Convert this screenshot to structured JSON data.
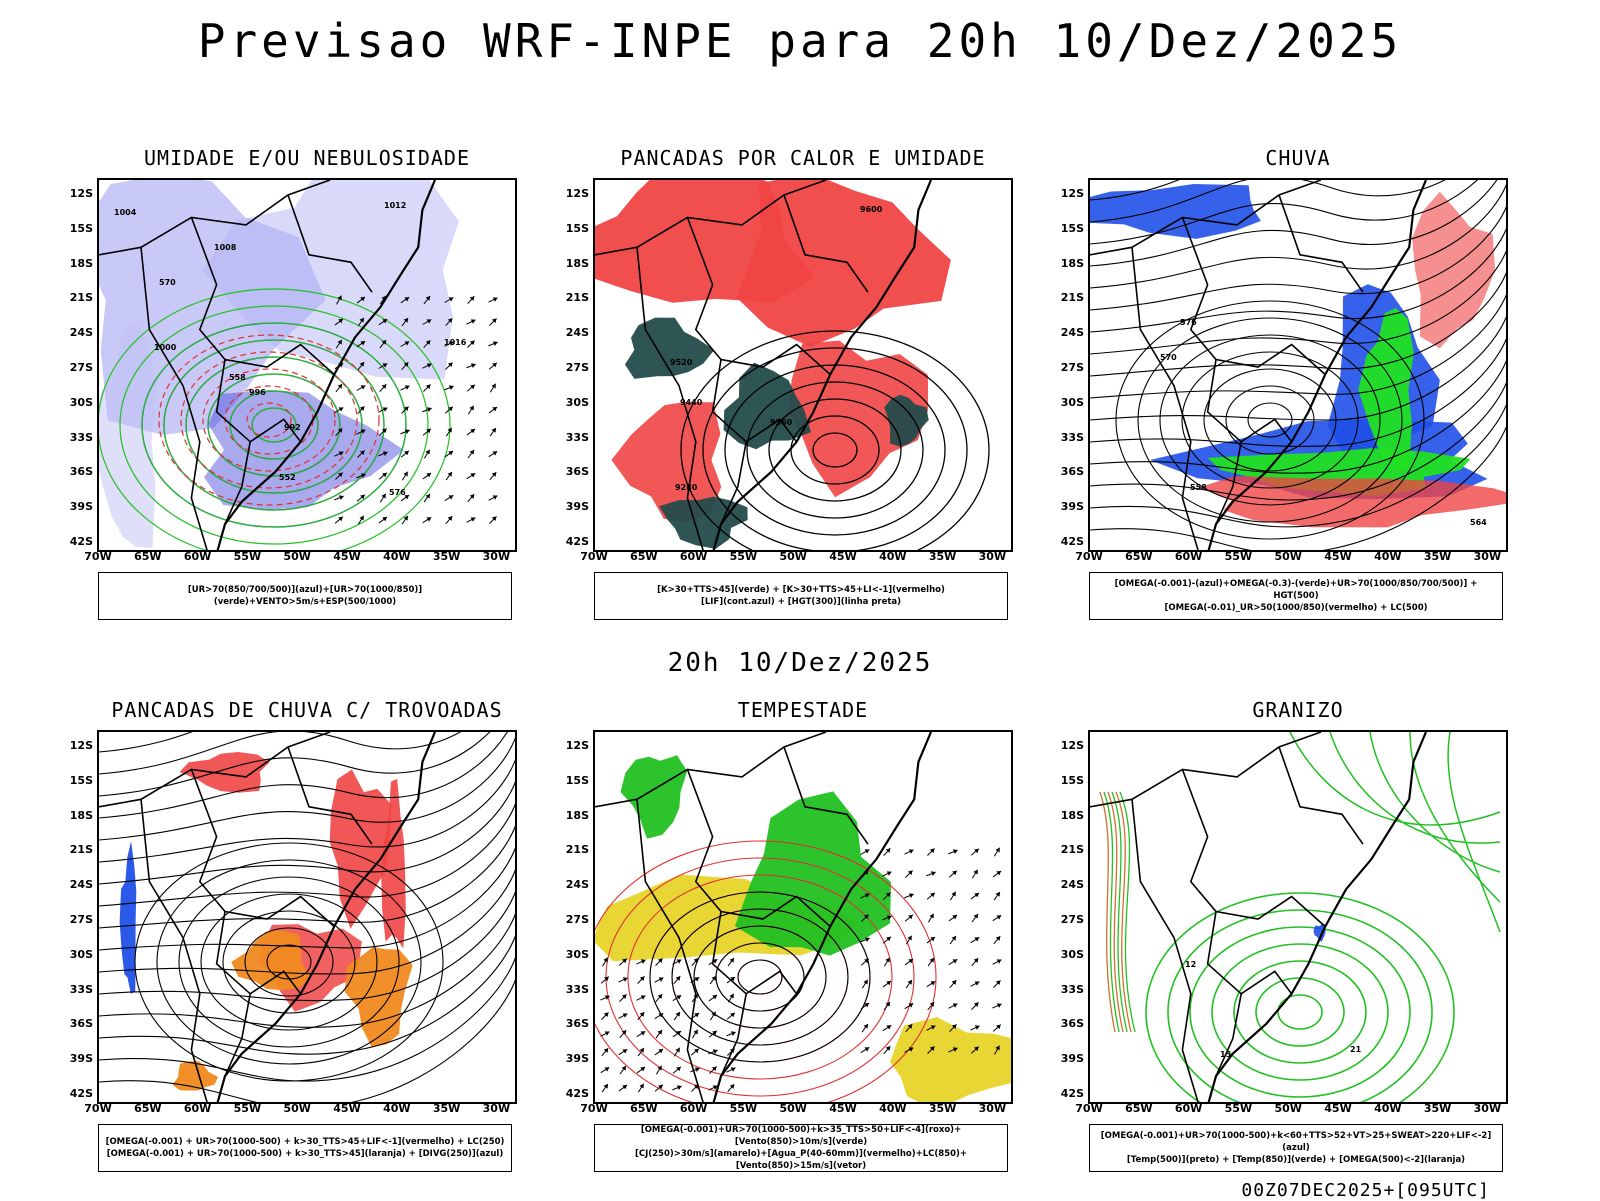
{
  "title": "Previsao WRF-INPE  para 20h 10/Dez/2025",
  "subtitle": "20h 10/Dez/2025",
  "footer": "00Z07DEC2025+[095UTC]",
  "lat_labels": [
    "12S",
    "15S",
    "18S",
    "21S",
    "24S",
    "27S",
    "30S",
    "33S",
    "36S",
    "39S",
    "42S"
  ],
  "lon_labels": [
    "70W",
    "65W",
    "60W",
    "55W",
    "50W",
    "45W",
    "40W",
    "35W",
    "30W"
  ],
  "panels": [
    {
      "title": "UMIDADE E/OU NEBULOSIDADE",
      "legend": [
        "[UR>70(850/700/500)](azul)+[UR>70(1000/850)](verde)+VENTO>5m/s+ESP(500/1000)"
      ],
      "contour_labels": [
        "1004",
        "1012",
        "1008",
        "1016",
        "1000",
        "996",
        "992",
        "576",
        "570",
        "558",
        "552"
      ]
    },
    {
      "title": "PANCADAS POR CALOR E UMIDADE",
      "legend": [
        "[K>30+TTS>45](verde) + [K>30+TTS>45+LI<-1](vermelho)",
        "[LIF](cont.azul) + [HGT(300)](linha preta)"
      ],
      "contour_labels": [
        "9600",
        "9520",
        "9440",
        "9360",
        "9280"
      ]
    },
    {
      "title": "CHUVA",
      "legend": [
        "[OMEGA(-0.001)-(azul)+OMEGA(-0.3)-(verde)+UR>70(1000/850/700/500)] + HGT(500)",
        "[OMEGA(-0.01)_UR>50(1000/850)(vermelho) + LC(500)"
      ],
      "contour_labels": [
        "576",
        "570",
        "564",
        "558"
      ]
    },
    {
      "title": "PANCADAS DE CHUVA C/ TROVOADAS",
      "legend": [
        "[OMEGA(-0.001) + UR>70(1000-500) + k>30_TTS>45+LIF<-1](vermelho) + LC(250)",
        "[OMEGA(-0.001) + UR>70(1000-500) + k>30_TTS>45](laranja) + [DIVG(250)](azul)"
      ],
      "contour_labels": []
    },
    {
      "title": "TEMPESTADE",
      "legend": [
        "[OMEGA(-0.001)+UR>70(1000-500)+k>35_TTS>50+LIF<-4](roxo)+[Vento(850)>10m/s](verde)",
        "[CJ(250)>30m/s](amarelo)+[Agua_P(40-60mm)](vermelho)+LC(850)+[Vento(850)>15m/s](vetor)"
      ],
      "contour_labels": []
    },
    {
      "title": "GRANIZO",
      "legend": [
        "[OMEGA(-0.001)+UR>70(1000-500)+k<60+TTS>52+VT>25+SWEAT>220+LIF<-2](azul)",
        "[Temp(500)](preto) + [Temp(850)](verde) + [OMEGA(500)<-2](laranja)"
      ],
      "contour_labels": [
        "12",
        "15",
        "21"
      ]
    }
  ]
}
